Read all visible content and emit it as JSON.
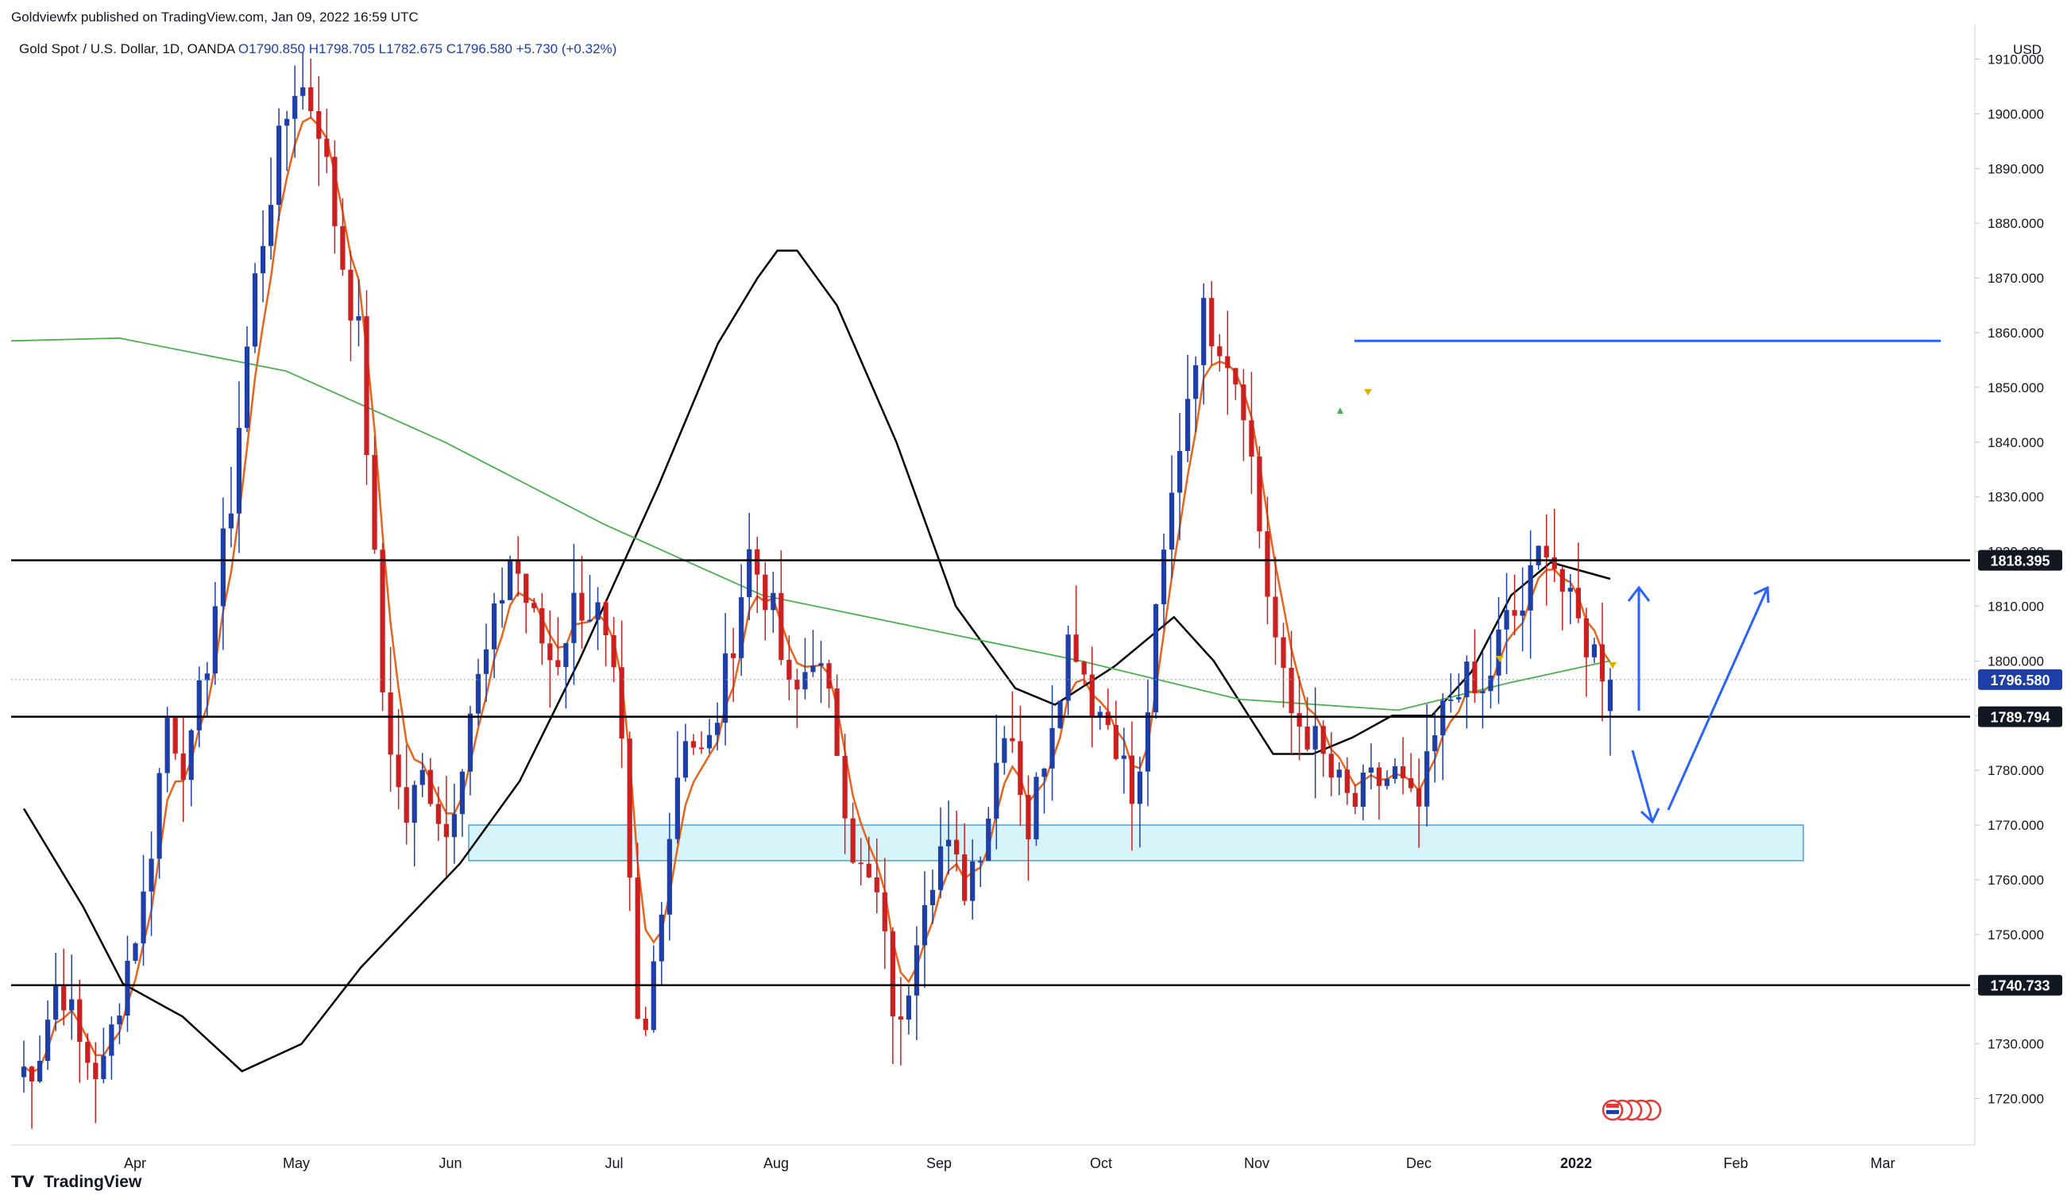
{
  "header": {
    "publisher": "Goldviewfx published on TradingView.com, Jan 09, 2022 16:59 UTC",
    "symbol": "Gold Spot / U.S. Dollar, 1D, OANDA",
    "ohlc": "O1790.850  H1798.705  L1782.675  C1796.580  +5.730 (+0.32%)"
  },
  "footer": {
    "brand": "TradingView",
    "logo_icon": "tradingview-logo-icon"
  },
  "chart_data": {
    "type": "candlestick",
    "currency": "USD",
    "ylim": [
      1715,
      1915
    ],
    "y_ticks": [
      1720,
      1730,
      1740,
      1750,
      1760,
      1770,
      1780,
      1790,
      1800,
      1810,
      1820,
      1830,
      1840,
      1850,
      1860,
      1870,
      1880,
      1890,
      1900,
      1910
    ],
    "x_labels": [
      "Apr",
      "May",
      "Jun",
      "Jul",
      "Aug",
      "Sep",
      "Oct",
      "Nov",
      "Dec",
      "2022",
      "Feb",
      "Mar"
    ],
    "price_labels": [
      {
        "value": 1818.395,
        "text": "1818.395",
        "style": "dark"
      },
      {
        "value": 1796.58,
        "text": "1796.580",
        "style": "blue"
      },
      {
        "value": 1789.794,
        "text": "1789.794",
        "style": "dark"
      },
      {
        "value": 1740.733,
        "text": "1740.733",
        "style": "dark"
      }
    ],
    "horizontal_lines": [
      1818.395,
      1789.794,
      1740.733
    ],
    "resistance_ray": {
      "value": 1858.5,
      "from": "Nov"
    },
    "support_zone": {
      "from": 1763.5,
      "to": 1770
    },
    "colors": {
      "up": "#1f3fa8",
      "down": "#cc1f1f",
      "ema_fast": "#e8641c",
      "ma_slow": "#000000",
      "ma_long": "#4caf50",
      "zone_fill": "#c8f0f8",
      "zone_border": "#4ba0d8",
      "arrow": "#2962ff"
    },
    "keypoints": [
      [
        1727,
        1721
      ],
      [
        1732,
        1723
      ],
      [
        1741,
        1745
      ],
      [
        1733,
        1725
      ],
      [
        1727,
        1721
      ],
      [
        1740,
        1745
      ],
      [
        1755,
        1760
      ],
      [
        1785,
        1795
      ],
      [
        1778,
        1782
      ],
      [
        1800,
        1808
      ],
      [
        1825,
        1835
      ],
      [
        1862,
        1872
      ],
      [
        1880,
        1900
      ],
      [
        1905,
        1908
      ],
      [
        1898,
        1902
      ],
      [
        1880,
        1872
      ],
      [
        1860,
        1855
      ],
      [
        1800,
        1790
      ],
      [
        1772,
        1768
      ],
      [
        1778,
        1782
      ],
      [
        1770,
        1766
      ],
      [
        1785,
        1795
      ],
      [
        1798,
        1808
      ],
      [
        1818,
        1822
      ],
      [
        1808,
        1806
      ],
      [
        1798,
        1800
      ],
      [
        1808,
        1815
      ],
      [
        1812,
        1805
      ],
      [
        1795,
        1785
      ],
      [
        1722,
        1724
      ],
      [
        1758,
        1760
      ],
      [
        1785,
        1792
      ],
      [
        1780,
        1782
      ],
      [
        1795,
        1802
      ],
      [
        1815,
        1825
      ],
      [
        1812,
        1810
      ],
      [
        1792,
        1790
      ],
      [
        1800,
        1805
      ],
      [
        1790,
        1785
      ],
      [
        1765,
        1760
      ],
      [
        1760,
        1752
      ],
      [
        1735,
        1724
      ],
      [
        1750,
        1765
      ],
      [
        1768,
        1765
      ],
      [
        1760,
        1758
      ],
      [
        1765,
        1775
      ],
      [
        1790,
        1795
      ],
      [
        1770,
        1768
      ],
      [
        1786,
        1792
      ],
      [
        1808,
        1805
      ],
      [
        1795,
        1790
      ],
      [
        1785,
        1790
      ],
      [
        1772,
        1770
      ],
      [
        1805,
        1815
      ],
      [
        1835,
        1845
      ],
      [
        1862,
        1865
      ],
      [
        1860,
        1858
      ],
      [
        1850,
        1846
      ],
      [
        1830,
        1800
      ],
      [
        1792,
        1790
      ],
      [
        1788,
        1786
      ],
      [
        1780,
        1778
      ],
      [
        1776,
        1770
      ],
      [
        1775,
        1780
      ],
      [
        1780,
        1778
      ],
      [
        1772,
        1770
      ],
      [
        1785,
        1790
      ],
      [
        1800,
        1795
      ],
      [
        1794,
        1790
      ],
      [
        1802,
        1810
      ],
      [
        1812,
        1808
      ],
      [
        1825,
        1822
      ],
      [
        1812,
        1808
      ],
      [
        1806,
        1800
      ],
      [
        1797,
        1797
      ]
    ],
    "ma_slow_points": [
      [
        0,
        1773
      ],
      [
        3,
        1755
      ],
      [
        5,
        1741
      ],
      [
        8,
        1735
      ],
      [
        11,
        1725
      ],
      [
        14,
        1730
      ],
      [
        17,
        1744
      ],
      [
        22,
        1763
      ],
      [
        25,
        1778
      ],
      [
        28,
        1800
      ],
      [
        32,
        1832
      ],
      [
        35,
        1858
      ],
      [
        37,
        1870
      ],
      [
        38,
        1875
      ],
      [
        39,
        1875
      ],
      [
        41,
        1865
      ],
      [
        44,
        1840
      ],
      [
        47,
        1810
      ],
      [
        50,
        1795
      ],
      [
        52,
        1792
      ],
      [
        55,
        1799
      ],
      [
        58,
        1808
      ],
      [
        60,
        1800
      ],
      [
        63,
        1783
      ],
      [
        65,
        1783
      ],
      [
        67,
        1786
      ],
      [
        69,
        1790
      ],
      [
        71,
        1790
      ],
      [
        73,
        1798
      ],
      [
        75,
        1812
      ],
      [
        77,
        1818
      ],
      [
        80,
        1815
      ]
    ]
  },
  "chart_icons": {
    "event_markers": "us-flag-event-icon",
    "signal_up": "triangle-up-icon",
    "signal_down": "triangle-down-icon"
  }
}
